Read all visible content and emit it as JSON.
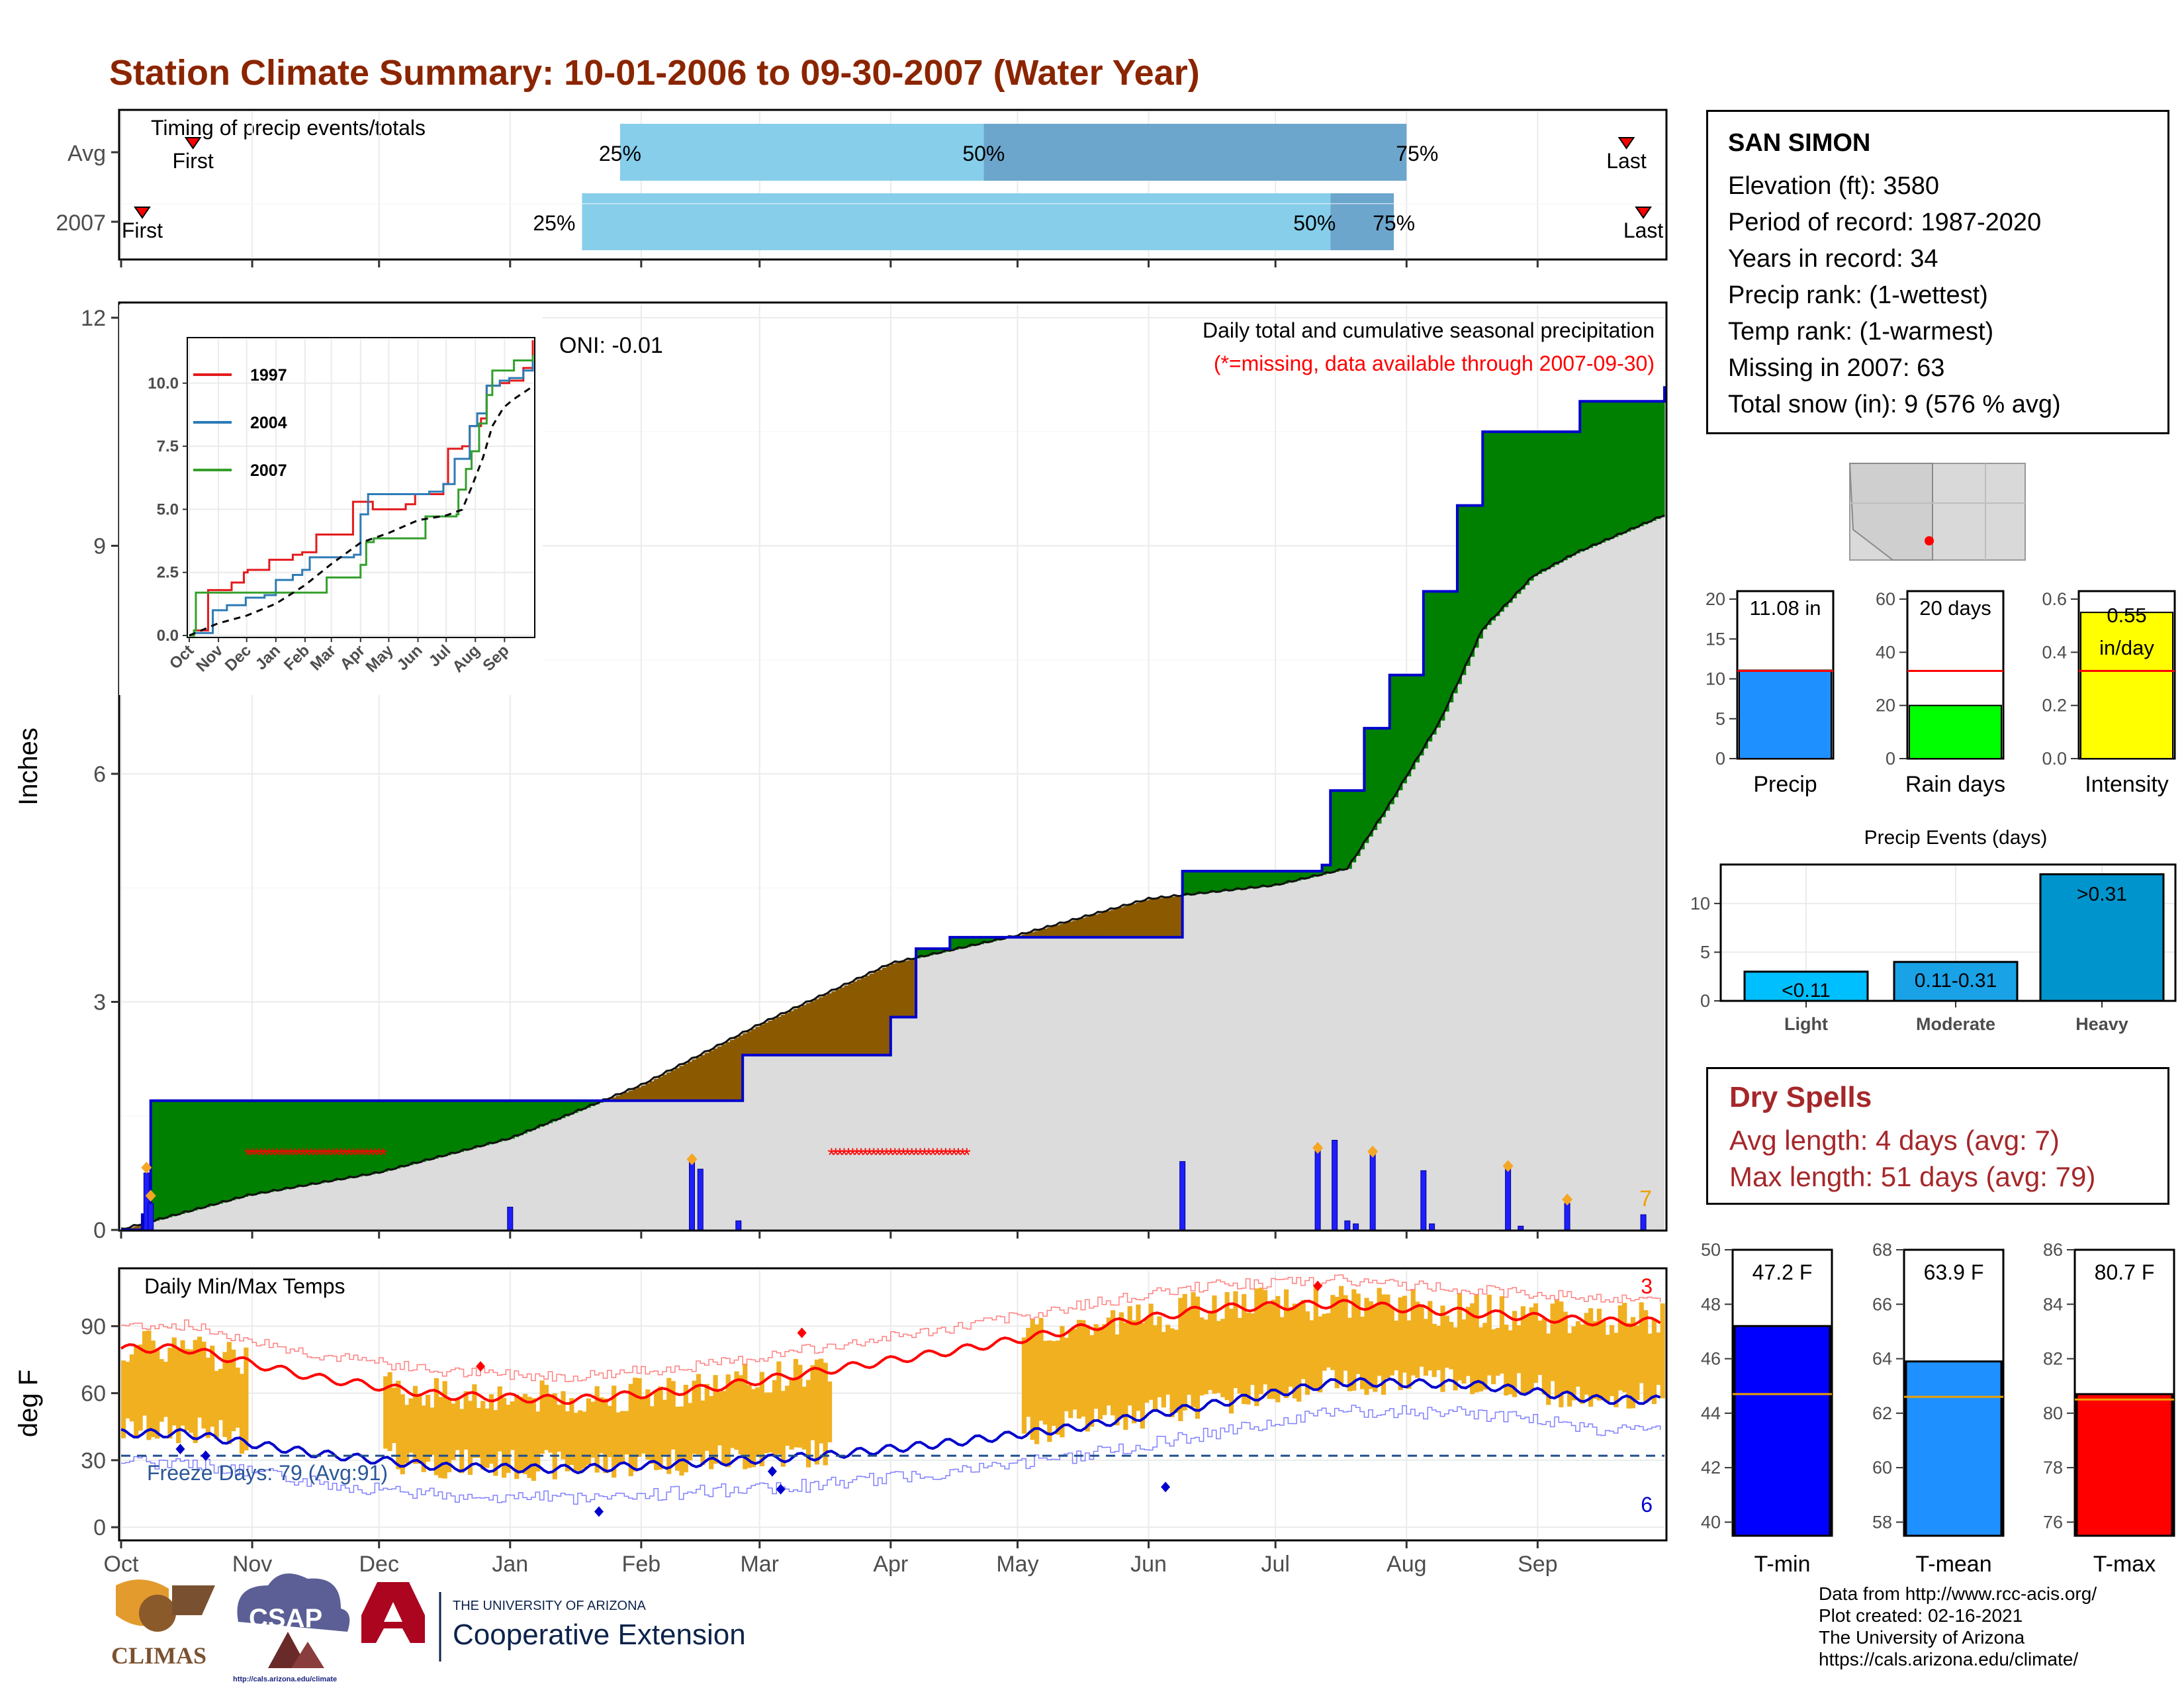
{
  "title": "Station Climate Summary: 10-01-2006 to 09-30-2007 (Water Year)",
  "colors": {
    "title": "#8b2500",
    "green": "#008000",
    "brown": "#8b5a00",
    "gray_fill": "#dcdcdc",
    "blue_line": "#0000cd",
    "bar_blue": "#1e1eff",
    "orange": "#f0b020",
    "red": "#ff0000",
    "light_blue": "#87ceeb",
    "mid_blue": "#6ca6cd",
    "dry_red": "#a5272a"
  },
  "timing": {
    "label": "Timing of precip events/totals",
    "rows": [
      {
        "name": "Avg",
        "first_label": "First",
        "last_label": "Last",
        "p25_label": "25%",
        "p50_label": "50%",
        "p75_label": "75%"
      },
      {
        "name": "2007",
        "first_label": "First",
        "last_label": "Last",
        "p25_label": "25%",
        "p50_label": "50%",
        "p75_label": "75%"
      }
    ]
  },
  "main": {
    "ylabel": "Inches",
    "title": "Daily total and cumulative seasonal precipitation",
    "subtitle": "(*=missing, data available through 2007-09-30)",
    "oni": "ONI: -0.01",
    "count_label": "7",
    "y_ticks": [
      "0",
      "3",
      "6",
      "9",
      "12"
    ]
  },
  "inset": {
    "legend": [
      "1997",
      "2004",
      "2007"
    ],
    "y_ticks": [
      "0.0",
      "2.5",
      "5.0",
      "7.5",
      "10.0"
    ],
    "x_ticks": [
      "Oct",
      "Nov",
      "Dec",
      "Jan",
      "Feb",
      "Mar",
      "Apr",
      "May",
      "Jun",
      "Jul",
      "Aug",
      "Sep"
    ]
  },
  "temp": {
    "ylabel": "deg F",
    "title": "Daily Min/Max Temps",
    "freeze_label": "Freeze Days: 79 (Avg:91)",
    "count_top": "3",
    "count_bottom": "6",
    "y_ticks": [
      "0",
      "30",
      "60",
      "90"
    ]
  },
  "months": [
    "Oct",
    "Nov",
    "Dec",
    "Jan",
    "Feb",
    "Mar",
    "Apr",
    "May",
    "Jun",
    "Jul",
    "Aug",
    "Sep"
  ],
  "station": {
    "name": "SAN SIMON",
    "lines": [
      "Elevation (ft): 3580",
      "Period of record: 1987-2020",
      "Years in record: 34",
      "Precip rank:  (1-wettest)",
      "Temp rank:  (1-warmest)",
      "Missing in 2007: 63",
      "Total snow (in): 9 (576 % avg)"
    ]
  },
  "summary_bars": [
    {
      "label": "Precip",
      "value_label": "11.08 in",
      "y_ticks": [
        "0",
        "5",
        "10",
        "15",
        "20"
      ]
    },
    {
      "label": "Rain days",
      "value_label": "20 days",
      "y_ticks": [
        "0",
        "20",
        "40",
        "60"
      ]
    },
    {
      "label": "Intensity",
      "value_label_1": "0.55",
      "value_label_2": "in/day",
      "y_ticks": [
        "0.0",
        "0.2",
        "0.4",
        "0.6"
      ]
    }
  ],
  "events": {
    "title": "Precip Events (days)",
    "bars": [
      {
        "label": "Light",
        "bar_label": "<0.11"
      },
      {
        "label": "Moderate",
        "bar_label": "0.11-0.31"
      },
      {
        "label": "Heavy",
        "bar_label": ">0.31"
      }
    ],
    "y_ticks": [
      "0",
      "5",
      "10"
    ]
  },
  "dry_spells": {
    "title": "Dry Spells",
    "avg": "Avg length: 4 days (avg: 7)",
    "max": "Max length: 51 days (avg: 79)"
  },
  "temp_bars": [
    {
      "label": "T-min",
      "value_label": "47.2 F",
      "y_ticks": [
        "40",
        "42",
        "44",
        "46",
        "48",
        "50"
      ]
    },
    {
      "label": "T-mean",
      "value_label": "63.9 F",
      "y_ticks": [
        "58",
        "60",
        "62",
        "64",
        "66",
        "68"
      ]
    },
    {
      "label": "T-max",
      "value_label": "80.7 F",
      "y_ticks": [
        "76",
        "78",
        "80",
        "82",
        "84",
        "86"
      ]
    }
  ],
  "footer": [
    "Data from http://www.rcc-acis.org/",
    "Plot created: 02-16-2021",
    "The University of Arizona",
    "https://cals.arizona.edu/climate/"
  ],
  "logos": {
    "climas": "CLIMAS",
    "csap": "CSAP",
    "csap_url": "http://cals.arizona.edu/climate",
    "ua_line1": "THE UNIVERSITY OF ARIZONA",
    "ua_line2": "Cooperative Extension"
  },
  "chart_data": [
    {
      "type": "bar",
      "title": "Timing of precip events/totals",
      "categories": [
        "Avg",
        "2007"
      ],
      "series": [
        {
          "name": "First",
          "values": [
            "2006-10-18",
            "2006-10-06"
          ]
        },
        {
          "name": "25%",
          "values": [
            "2007-01-27",
            "2007-01-18"
          ]
        },
        {
          "name": "50%",
          "values": [
            "2007-04-23",
            "2007-07-14"
          ]
        },
        {
          "name": "75%",
          "values": [
            "2007-08-01",
            "2007-07-29"
          ]
        },
        {
          "name": "Last",
          "values": [
            "2007-09-22",
            "2007-09-26"
          ]
        }
      ]
    },
    {
      "type": "area",
      "title": "Daily total and cumulative seasonal precipitation",
      "ylabel": "Inches",
      "ylim": [
        0,
        12
      ],
      "cumulative_2007": [
        [
          0,
          0
        ],
        [
          5,
          0.2
        ],
        [
          7,
          1.7
        ],
        [
          60,
          1.7
        ],
        [
          80,
          1.7
        ],
        [
          82,
          1.7
        ],
        [
          120,
          1.7
        ],
        [
          146,
          1.7
        ],
        [
          147,
          2.3
        ],
        [
          178,
          2.3
        ],
        [
          182,
          2.8
        ],
        [
          188,
          3.7
        ],
        [
          196,
          3.85
        ],
        [
          249,
          3.85
        ],
        [
          251,
          4.72
        ],
        [
          279,
          4.72
        ],
        [
          284,
          4.8
        ],
        [
          286,
          5.78
        ],
        [
          294,
          6.6
        ],
        [
          300,
          7.3
        ],
        [
          308,
          8.4
        ],
        [
          316,
          9.53
        ],
        [
          322,
          10.5
        ],
        [
          340,
          10.5
        ],
        [
          345,
          10.9
        ],
        [
          364,
          10.9
        ],
        [
          365,
          11.1
        ]
      ],
      "cumulative_avg": [
        [
          0,
          0
        ],
        [
          30,
          0.45
        ],
        [
          61,
          0.75
        ],
        [
          92,
          1.2
        ],
        [
          123,
          1.9
        ],
        [
          151,
          2.7
        ],
        [
          182,
          3.5
        ],
        [
          212,
          3.87
        ],
        [
          243,
          4.35
        ],
        [
          273,
          4.53
        ],
        [
          290,
          4.75
        ],
        [
          300,
          5.6
        ],
        [
          312,
          6.7
        ],
        [
          322,
          7.9
        ],
        [
          334,
          8.6
        ],
        [
          344,
          8.9
        ],
        [
          365,
          9.4
        ]
      ],
      "daily_bars": [
        [
          6,
          0.75
        ],
        [
          7,
          0.35
        ],
        [
          92,
          0.3
        ],
        [
          135,
          0.92
        ],
        [
          137,
          0.8
        ],
        [
          146,
          0.12
        ],
        [
          251,
          0.9
        ],
        [
          283,
          1.05
        ],
        [
          287,
          1.18
        ],
        [
          290,
          0.12
        ],
        [
          292,
          0.08
        ],
        [
          296,
          1.0
        ],
        [
          308,
          0.78
        ],
        [
          310,
          0.08
        ],
        [
          328,
          0.82
        ],
        [
          331,
          0.05
        ],
        [
          342,
          0.35
        ],
        [
          360,
          0.2
        ]
      ],
      "missing_ranges_days": [
        [
          30,
          62
        ],
        [
          168,
          200
        ]
      ]
    },
    {
      "type": "line",
      "title": "Daily Min/Max Temps",
      "ylabel": "deg F",
      "x": [
        "Oct",
        "Nov",
        "Dec",
        "Jan",
        "Feb",
        "Mar",
        "Apr",
        "May",
        "Jun",
        "Jul",
        "Aug",
        "Sep"
      ],
      "series": [
        {
          "name": "avg max",
          "values": [
            80,
            67,
            59,
            57,
            62,
            70,
            79,
            89,
            98,
            100,
            96,
            92
          ]
        },
        {
          "name": "avg min",
          "values": [
            42,
            33,
            27,
            26,
            29,
            32,
            38,
            45,
            55,
            65,
            64,
            57
          ]
        }
      ],
      "freeze_line": 32,
      "ylim": [
        -5,
        115
      ]
    },
    {
      "type": "bar",
      "categories": [
        "Precip"
      ],
      "values": [
        11.08
      ],
      "ylim": [
        0,
        21
      ]
    },
    {
      "type": "bar",
      "categories": [
        "Rain days"
      ],
      "values": [
        20
      ],
      "ylim": [
        0,
        63
      ]
    },
    {
      "type": "bar",
      "categories": [
        "Intensity"
      ],
      "values": [
        0.55
      ],
      "ylim": [
        0,
        0.63
      ]
    },
    {
      "type": "bar",
      "title": "Precip Events (days)",
      "categories": [
        "Light",
        "Moderate",
        "Heavy"
      ],
      "values": [
        3,
        4,
        13
      ],
      "ylim": [
        0,
        14
      ]
    },
    {
      "type": "bar",
      "categories": [
        "T-min"
      ],
      "values": [
        47.2
      ],
      "ylim": [
        39.5,
        50
      ]
    },
    {
      "type": "bar",
      "categories": [
        "T-mean"
      ],
      "values": [
        63.9
      ],
      "ylim": [
        57.5,
        68
      ]
    },
    {
      "type": "bar",
      "categories": [
        "T-max"
      ],
      "values": [
        80.7
      ],
      "ylim": [
        75.5,
        86
      ]
    }
  ]
}
